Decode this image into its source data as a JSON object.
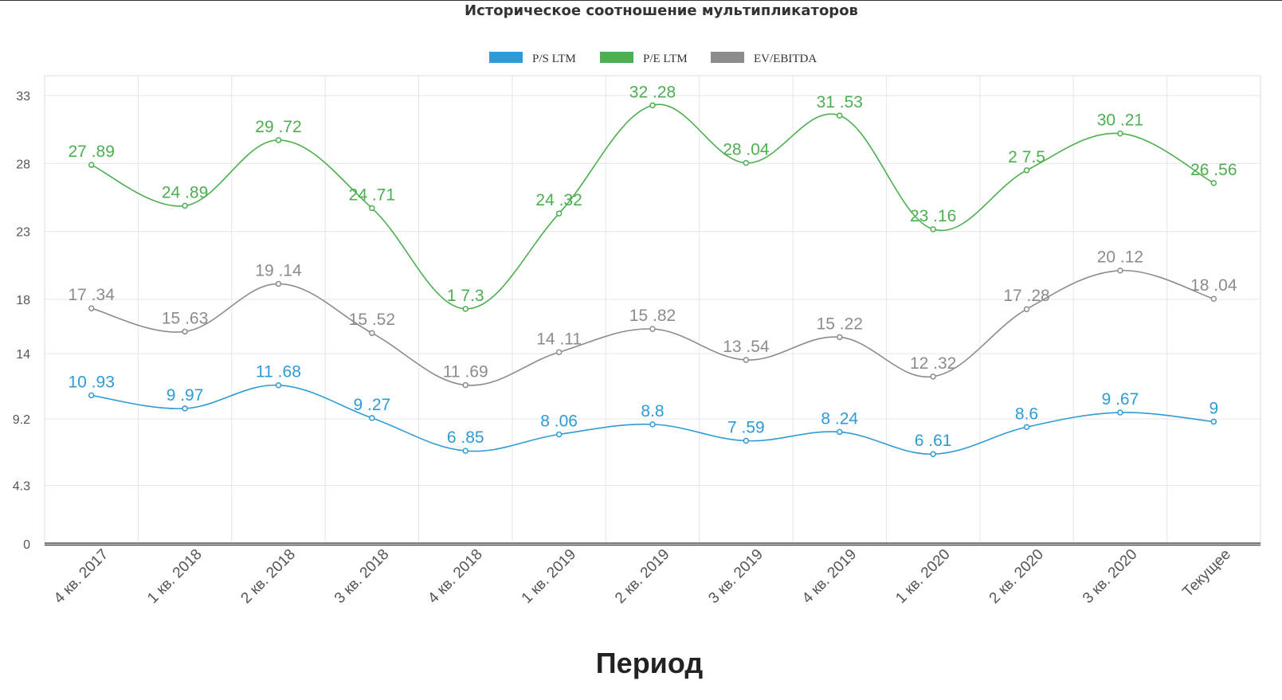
{
  "chart_data": {
    "type": "line",
    "title": "Историческое соотношение мультипликаторов",
    "xlabel": "Период",
    "ylabel": "",
    "categories": [
      "4 кв. 2017",
      "1 кв. 2018",
      "2 кв. 2018",
      "3 кв. 2018",
      "4 кв. 2018",
      "1 кв. 2019",
      "2 кв. 2019",
      "3 кв. 2019",
      "4 кв. 2019",
      "1 кв. 2020",
      "2 кв. 2020",
      "3 кв. 2020",
      "Текущее"
    ],
    "yticks": [
      "0",
      "4.3",
      "9.2",
      "14",
      "18",
      "23",
      "28",
      "33"
    ],
    "ylim": [
      0,
      33
    ],
    "grid": true,
    "legend_position": "top-center",
    "series": [
      {
        "name": "P/S LTM",
        "color": "#2e9bd6",
        "values": [
          10.93,
          9.97,
          11.68,
          9.27,
          6.85,
          8.06,
          8.8,
          7.59,
          8.24,
          6.61,
          8.6,
          9.67,
          9
        ],
        "labels": [
          "10 .93",
          "9 .97",
          "11 .68",
          "9 .27",
          "6 .85",
          "8 .06",
          "8.8",
          "7 .59",
          "8 .24",
          "6 .61",
          "8.6",
          "9 .67",
          "9"
        ]
      },
      {
        "name": "P/E LTM",
        "color": "#4caf50",
        "values": [
          27.89,
          24.89,
          29.72,
          24.71,
          17.3,
          24.32,
          32.28,
          28.04,
          31.53,
          23.16,
          27.5,
          30.21,
          26.56
        ],
        "labels": [
          "27 .89",
          "24 .89",
          "29 .72",
          "24 .71",
          "1 7.3",
          "24 .32",
          "32 .28",
          "28 .04",
          "31 .53",
          "23 .16",
          "2 7.5",
          "30 .21",
          "26 .56"
        ]
      },
      {
        "name": "EV/EBITDA",
        "color": "#8c8c8c",
        "values": [
          17.34,
          15.63,
          19.14,
          15.52,
          11.69,
          14.11,
          15.82,
          13.54,
          15.22,
          12.32,
          17.28,
          20.12,
          18.04
        ],
        "labels": [
          "17 .34",
          "15 .63",
          "19 .14",
          "15 .52",
          "11 .69",
          "14 .11",
          "15 .82",
          "13 .54",
          "15 .22",
          "12 .32",
          "17 .28",
          "20 .12",
          "18 .04"
        ]
      }
    ]
  }
}
